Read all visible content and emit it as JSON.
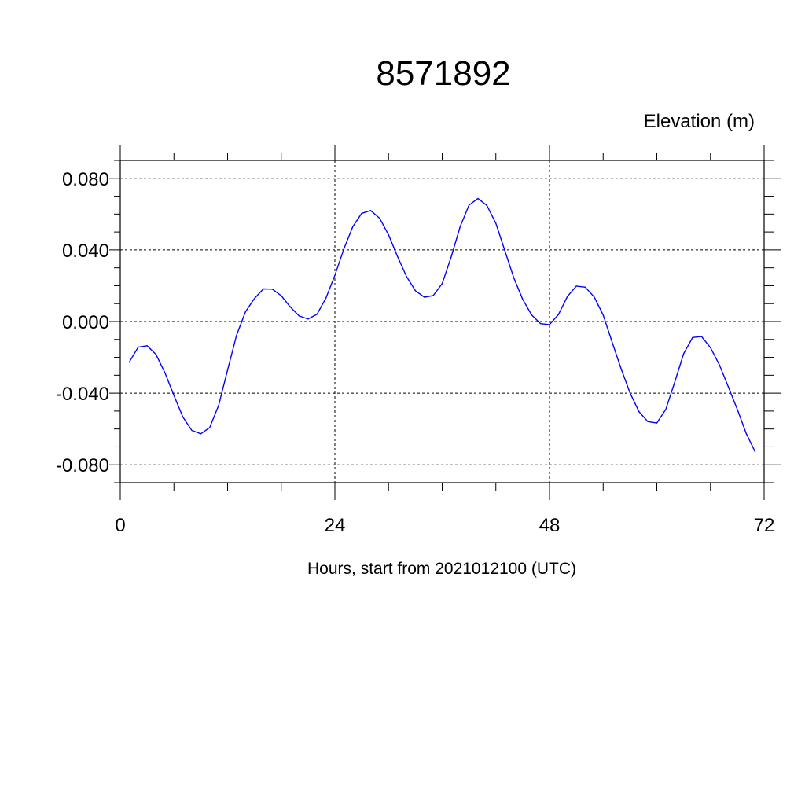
{
  "chart_data": {
    "type": "line",
    "title": "8571892",
    "ylabel": "Elevation (m)",
    "xlabel": "Hours, start from 2021012100 (UTC)",
    "xlim": [
      0,
      72
    ],
    "ylim": [
      -0.09,
      0.09
    ],
    "x_ticks": [
      0,
      24,
      48,
      72
    ],
    "x_tick_labels": [
      "0",
      "24",
      "48",
      "72"
    ],
    "y_ticks": [
      0.08,
      0.04,
      0.0,
      -0.04,
      -0.08
    ],
    "y_tick_labels": [
      "0.080",
      "0.040",
      "0.000",
      "-0.040",
      "-0.080"
    ],
    "grid": true,
    "line_color": "#0000ff",
    "series": [
      {
        "x": [
          1,
          2,
          3,
          4,
          5,
          6,
          7,
          8,
          9,
          10,
          11,
          12,
          13,
          14,
          15,
          16,
          17,
          18,
          19,
          20,
          21,
          22,
          23,
          24,
          25,
          26,
          27,
          28,
          29,
          30,
          31,
          32,
          33,
          34,
          35,
          36,
          37,
          38,
          39,
          40,
          41,
          42,
          43,
          44,
          45,
          46,
          47,
          48,
          49,
          50,
          51,
          52,
          53,
          54,
          55,
          56,
          57,
          58,
          59,
          60,
          61,
          62,
          63,
          64,
          65,
          66,
          67,
          68,
          69,
          70,
          71
        ],
        "values": [
          -0.0227,
          -0.0143,
          -0.0135,
          -0.0184,
          -0.0287,
          -0.0413,
          -0.0533,
          -0.0608,
          -0.0627,
          -0.0592,
          -0.0469,
          -0.0271,
          -0.0077,
          0.0055,
          0.0128,
          0.0182,
          0.0181,
          0.0144,
          0.0082,
          0.0031,
          0.0014,
          0.0041,
          0.0131,
          0.0258,
          0.0405,
          0.053,
          0.0604,
          0.062,
          0.0577,
          0.0484,
          0.0364,
          0.0252,
          0.0172,
          0.0136,
          0.0145,
          0.0212,
          0.036,
          0.0529,
          0.065,
          0.0687,
          0.0648,
          0.0548,
          0.0397,
          0.0245,
          0.0124,
          0.0037,
          -0.0012,
          -0.0017,
          0.0039,
          0.014,
          0.0198,
          0.0192,
          0.0137,
          0.0036,
          -0.0114,
          -0.0263,
          -0.0398,
          -0.0503,
          -0.0559,
          -0.0567,
          -0.0491,
          -0.0338,
          -0.018,
          -0.0089,
          -0.0084,
          -0.0146,
          -0.0242,
          -0.0365,
          -0.0491,
          -0.0626,
          -0.0728
        ]
      }
    ]
  }
}
